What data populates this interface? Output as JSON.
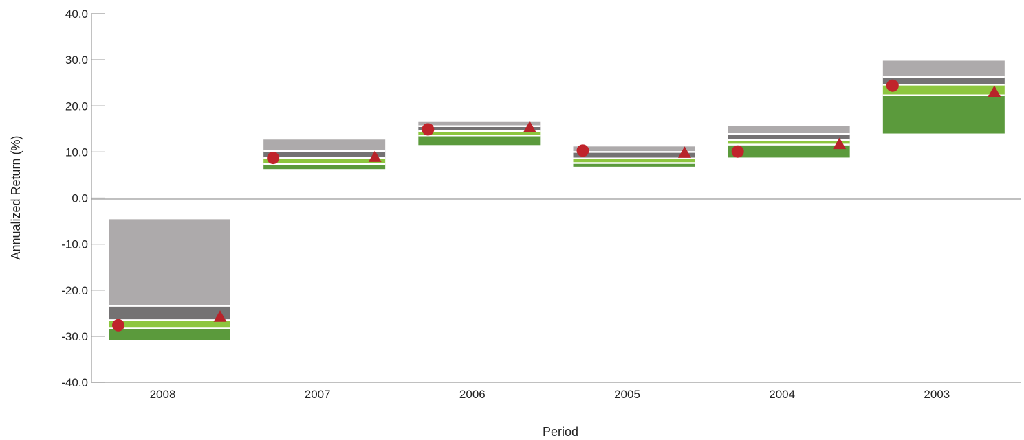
{
  "chart_data": {
    "type": "floating-bar",
    "title": "",
    "xlabel": "Period",
    "ylabel": "Annualized Return (%)",
    "ylim": [
      -40,
      40
    ],
    "yticks": [
      40,
      30,
      20,
      10,
      0,
      -10,
      -20,
      -30,
      -40
    ],
    "ytick_labels": [
      "40.0",
      "30.0",
      "20.0",
      "10.0",
      "0.0",
      "-10.0",
      "-20.0",
      "-30.0",
      "-40.0"
    ],
    "categories": [
      "2008",
      "2007",
      "2006",
      "2005",
      "2004",
      "2003"
    ],
    "grid": "horizontal-ticks-only",
    "quartile_colors": [
      "#adaaab",
      "#747273",
      "#8dc63f",
      "#5b9a3c"
    ],
    "quartile_bands": [
      {
        "category": "2008",
        "bands": [
          [
            -4.6,
            -23.4
          ],
          [
            -23.4,
            -26.5
          ],
          [
            -26.5,
            -28.3
          ],
          [
            -28.3,
            -30.8
          ]
        ]
      },
      {
        "category": "2007",
        "bands": [
          [
            12.7,
            10.2
          ],
          [
            10.2,
            8.7
          ],
          [
            8.7,
            7.4
          ],
          [
            7.4,
            6.3
          ]
        ]
      },
      {
        "category": "2006",
        "bands": [
          [
            16.5,
            15.6
          ],
          [
            15.6,
            14.5
          ],
          [
            14.5,
            13.6
          ],
          [
            13.6,
            11.5
          ]
        ]
      },
      {
        "category": "2005",
        "bands": [
          [
            11.2,
            10.0
          ],
          [
            10.0,
            8.6
          ],
          [
            8.6,
            7.6
          ],
          [
            7.6,
            6.8
          ]
        ]
      },
      {
        "category": "2004",
        "bands": [
          [
            15.6,
            13.9
          ],
          [
            13.9,
            12.6
          ],
          [
            12.6,
            11.6
          ],
          [
            11.6,
            8.8
          ]
        ]
      },
      {
        "category": "2003",
        "bands": [
          [
            29.8,
            26.3
          ],
          [
            26.3,
            24.6
          ],
          [
            24.6,
            22.3
          ],
          [
            22.3,
            14.0
          ]
        ]
      }
    ],
    "series": [
      {
        "marker": "circle",
        "color": "#c0242b",
        "values": [
          -27.6,
          8.7,
          14.9,
          10.3,
          10.1,
          24.4
        ]
      },
      {
        "marker": "triangle",
        "color": "#b8232a",
        "values": [
          -25.8,
          8.9,
          15.3,
          9.8,
          11.7,
          23.0
        ]
      }
    ]
  }
}
